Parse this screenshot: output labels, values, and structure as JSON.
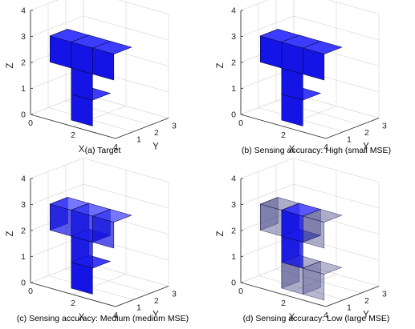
{
  "chart_data": [
    {
      "type": "3d-voxel",
      "caption": "(a) Target",
      "xlabel": "X",
      "ylabel": "Y",
      "zlabel": "Z",
      "xticks": [
        "0",
        "2",
        "4"
      ],
      "yticks": [
        "0",
        "1",
        "2",
        "3"
      ],
      "zticks": [
        "0",
        "1",
        "2",
        "3",
        "4"
      ],
      "xlim": [
        0,
        4
      ],
      "ylim": [
        0,
        3
      ],
      "zlim": [
        0,
        4
      ],
      "voxels": [
        {
          "x": 2,
          "y": 1,
          "z": 0.5,
          "opacity": 1.0
        },
        {
          "x": 2,
          "y": 1,
          "z": 1.5,
          "opacity": 1.0
        },
        {
          "x": 1,
          "y": 1,
          "z": 2.5,
          "opacity": 1.0
        },
        {
          "x": 2,
          "y": 1,
          "z": 2.5,
          "opacity": 1.0
        },
        {
          "x": 3,
          "y": 1,
          "z": 2.5,
          "opacity": 1.0
        }
      ]
    },
    {
      "type": "3d-voxel",
      "caption": "(b) Sensing accuracy: High (small MSE)",
      "xlabel": "X",
      "ylabel": "Y",
      "zlabel": "Z",
      "xticks": [
        "0",
        "2",
        "4"
      ],
      "yticks": [
        "0",
        "1",
        "2",
        "3"
      ],
      "zticks": [
        "0",
        "1",
        "2",
        "3",
        "4"
      ],
      "xlim": [
        0,
        4
      ],
      "ylim": [
        0,
        3
      ],
      "zlim": [
        0,
        4
      ],
      "voxels": [
        {
          "x": 2,
          "y": 1,
          "z": 0.5,
          "opacity": 1.0
        },
        {
          "x": 2,
          "y": 1,
          "z": 1.5,
          "opacity": 1.0
        },
        {
          "x": 1,
          "y": 1,
          "z": 2.5,
          "opacity": 1.0
        },
        {
          "x": 2,
          "y": 1,
          "z": 2.5,
          "opacity": 1.0
        },
        {
          "x": 3,
          "y": 1,
          "z": 2.5,
          "opacity": 1.0
        }
      ]
    },
    {
      "type": "3d-voxel",
      "caption": "(c) Sensing accuracy: Medium (medium MSE)",
      "xlabel": "X",
      "ylabel": "Y",
      "zlabel": "Z",
      "xticks": [
        "0",
        "2",
        "4"
      ],
      "yticks": [
        "0",
        "1",
        "2",
        "3"
      ],
      "zticks": [
        "0",
        "1",
        "2",
        "3",
        "4"
      ],
      "xlim": [
        0,
        4
      ],
      "ylim": [
        0,
        3
      ],
      "zlim": [
        0,
        4
      ],
      "voxels": [
        {
          "x": 2,
          "y": 1,
          "z": 0.5,
          "opacity": 1.0
        },
        {
          "x": 2,
          "y": 1,
          "z": 1.5,
          "opacity": 0.8
        },
        {
          "x": 1,
          "y": 1,
          "z": 2.5,
          "opacity": 0.7
        },
        {
          "x": 2,
          "y": 1,
          "z": 2.5,
          "opacity": 0.75
        },
        {
          "x": 3,
          "y": 1,
          "z": 2.5,
          "opacity": 0.7
        }
      ]
    },
    {
      "type": "3d-voxel",
      "caption": "(d) Sensing accuracy: Low (large MSE)",
      "xlabel": "X",
      "ylabel": "Y",
      "zlabel": "Z",
      "xticks": [
        "0",
        "2",
        "4"
      ],
      "yticks": [
        "0",
        "1",
        "2",
        "3"
      ],
      "zticks": [
        "0",
        "1",
        "2",
        "3",
        "4"
      ],
      "xlim": [
        0,
        4
      ],
      "ylim": [
        0,
        3
      ],
      "zlim": [
        0,
        4
      ],
      "voxels": [
        {
          "x": 2,
          "y": 1,
          "z": 0.5,
          "opacity": 0.45
        },
        {
          "x": 3,
          "y": 1,
          "z": 0.5,
          "opacity": 0.4
        },
        {
          "x": 2,
          "y": 1,
          "z": 1.5,
          "opacity": 0.8
        },
        {
          "x": 1,
          "y": 1,
          "z": 2.5,
          "opacity": 0.45
        },
        {
          "x": 2,
          "y": 1,
          "z": 2.5,
          "opacity": 0.85
        },
        {
          "x": 3,
          "y": 1,
          "z": 2.5,
          "opacity": 0.45
        }
      ]
    }
  ],
  "colors": {
    "voxel": "#1414e6",
    "voxel_top": "#3c3cff",
    "voxel_side": "#0d0dc8",
    "voxel_edge": "#0a0a40",
    "faded": "#4a4a8a",
    "grid": "#dddddd",
    "axis": "#333333"
  }
}
